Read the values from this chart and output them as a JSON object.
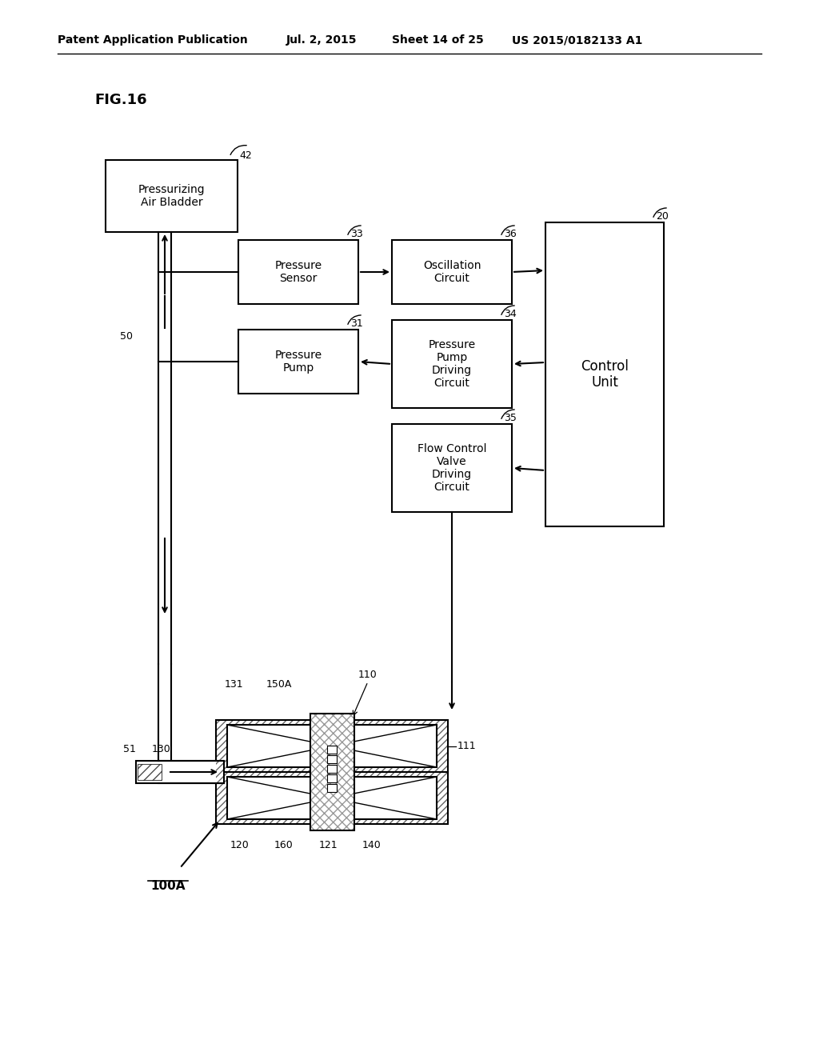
{
  "title_left": "Patent Application Publication",
  "title_mid": "Jul. 2, 2015",
  "title_sheet": "Sheet 14 of 25",
  "title_right": "US 2015/0182133 A1",
  "fig_label": "FIG.16",
  "bg_color": "#ffffff"
}
